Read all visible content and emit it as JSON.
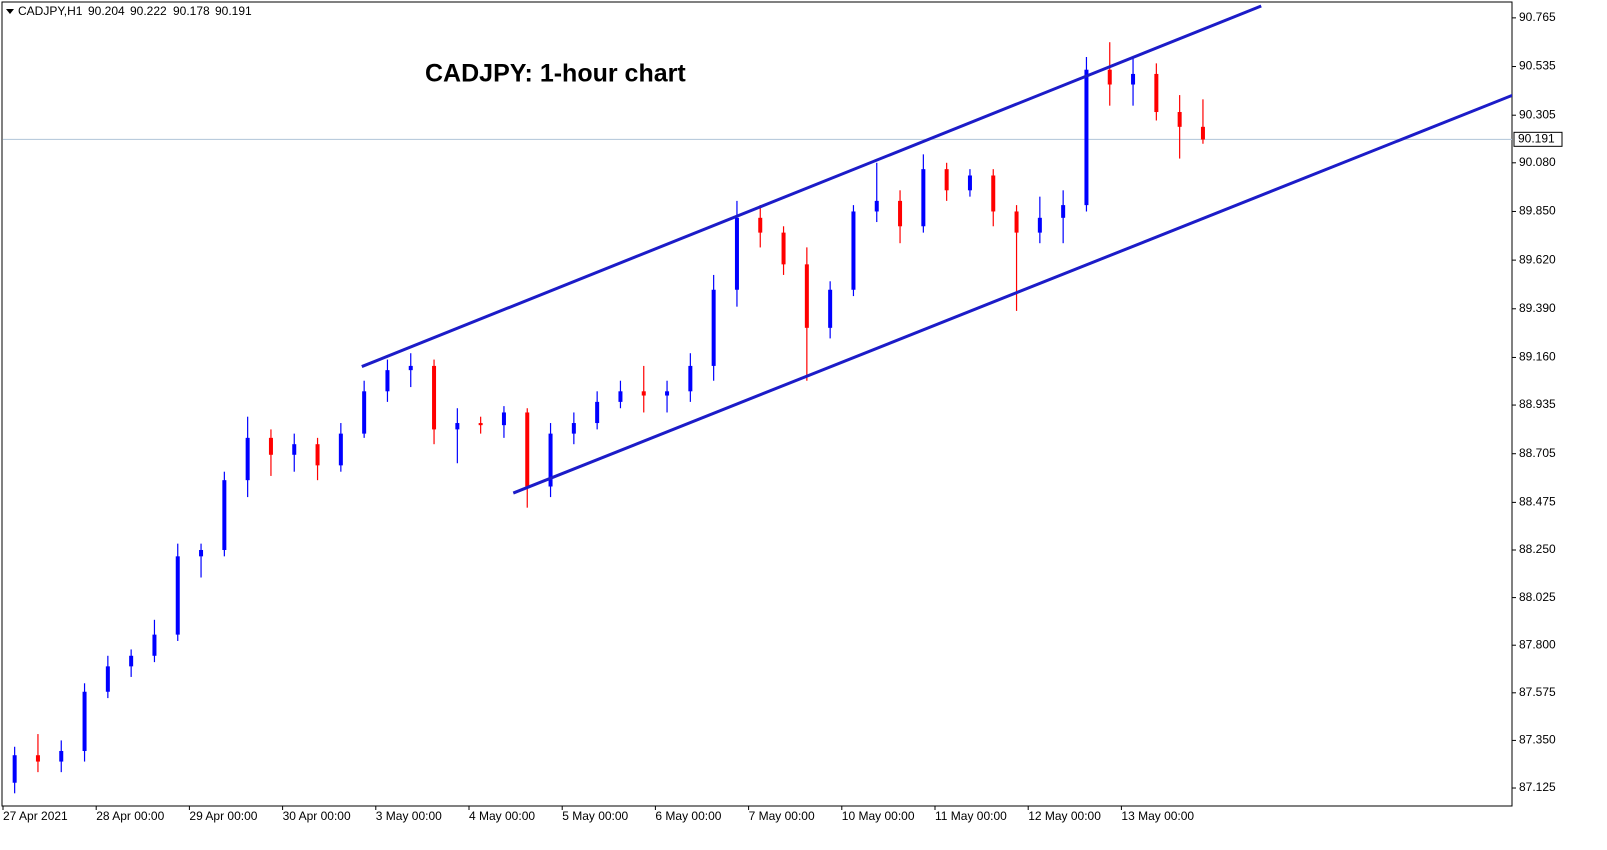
{
  "chart_data": {
    "type": "candlestick",
    "symbol": "CADJPY,H1",
    "header_prices": [
      90.204,
      90.222,
      90.178,
      90.191
    ],
    "title": "CADJPY: 1-hour chart",
    "categories": [
      "27 Apr 2021",
      null,
      null,
      null,
      "28 Apr 00:00",
      null,
      null,
      null,
      "29 Apr 00:00",
      null,
      null,
      null,
      "30 Apr 00:00",
      null,
      null,
      null,
      "3 May 00:00",
      null,
      null,
      null,
      "4 May 00:00",
      null,
      null,
      null,
      "5 May 00:00",
      null,
      null,
      null,
      "6 May 00:00",
      null,
      null,
      null,
      "7 May 00:00",
      null,
      null,
      null,
      "10 May 00:00",
      null,
      null,
      null,
      "11 May 00:00",
      null,
      null,
      null,
      "12 May 00:00",
      null,
      null,
      null,
      "13 May 00:00",
      null,
      null,
      null
    ],
    "open": [
      87.15,
      87.28,
      87.25,
      87.3,
      87.58,
      87.7,
      87.75,
      87.85,
      88.22,
      88.25,
      88.58,
      88.78,
      88.7,
      88.75,
      88.65,
      88.8,
      89.0,
      89.1,
      89.12,
      88.82,
      88.85,
      88.84,
      88.9,
      88.55,
      88.8,
      88.85,
      88.95,
      89.0,
      88.98,
      89.0,
      89.12,
      89.48,
      89.82,
      89.75,
      89.6,
      89.3,
      89.48,
      89.85,
      89.9,
      89.78,
      90.05,
      89.95,
      90.02,
      89.85,
      89.75,
      89.82,
      89.88,
      90.52,
      90.45,
      90.5,
      90.32,
      90.25
    ],
    "high": [
      87.32,
      87.38,
      87.35,
      87.62,
      87.75,
      87.78,
      87.92,
      88.28,
      88.28,
      88.62,
      88.88,
      88.82,
      88.8,
      88.78,
      88.85,
      89.05,
      89.15,
      89.18,
      89.15,
      88.92,
      88.88,
      88.93,
      88.92,
      88.85,
      88.9,
      89.0,
      89.05,
      89.12,
      89.05,
      89.18,
      89.55,
      89.9,
      89.88,
      89.78,
      89.68,
      89.52,
      89.88,
      90.08,
      89.95,
      90.12,
      90.08,
      90.05,
      90.05,
      89.88,
      89.92,
      89.95,
      90.58,
      90.65,
      90.58,
      90.55,
      90.4,
      90.38
    ],
    "low": [
      87.1,
      87.2,
      87.2,
      87.25,
      87.55,
      87.65,
      87.72,
      87.82,
      88.12,
      88.22,
      88.5,
      88.6,
      88.62,
      88.58,
      88.62,
      88.78,
      88.95,
      89.02,
      88.75,
      88.66,
      88.8,
      88.78,
      88.45,
      88.5,
      88.75,
      88.82,
      88.92,
      88.9,
      88.9,
      88.95,
      89.05,
      89.4,
      89.68,
      89.55,
      89.05,
      89.25,
      89.45,
      89.8,
      89.7,
      89.75,
      89.9,
      89.92,
      89.78,
      89.38,
      89.7,
      89.7,
      89.85,
      90.35,
      90.35,
      90.28,
      90.1,
      90.17
    ],
    "close": [
      87.28,
      87.25,
      87.3,
      87.58,
      87.7,
      87.75,
      87.85,
      88.22,
      88.25,
      88.58,
      88.78,
      88.7,
      88.75,
      88.65,
      88.8,
      89.0,
      89.1,
      89.12,
      88.82,
      88.85,
      88.84,
      88.9,
      88.55,
      88.8,
      88.85,
      88.95,
      89.0,
      88.98,
      89.0,
      89.12,
      89.48,
      89.82,
      89.75,
      89.6,
      89.3,
      89.48,
      89.85,
      89.9,
      89.78,
      90.05,
      89.95,
      90.02,
      89.85,
      89.75,
      89.82,
      89.88,
      90.52,
      90.45,
      90.5,
      90.32,
      90.25,
      90.19
    ],
    "up_color": "#0000ff",
    "down_color": "#ff0000",
    "last_price": 90.191,
    "last_price_color": "#b0c4d8",
    "trendlines": [
      {
        "x": [
          14.9,
          53.5
        ],
        "y": [
          89.117,
          90.821
        ],
        "color": "#1c1cc8"
      },
      {
        "x": [
          21.4,
          64.3
        ],
        "y": [
          88.519,
          90.4
        ],
        "color": "#1c1cc8"
      }
    ],
    "ylim": [
      87.04,
      90.84
    ],
    "yticks": [
      90.765,
      90.535,
      90.305,
      {
        "value": 90.08,
        "label": "90.080"
      },
      {
        "value": 89.85,
        "label": "89.850"
      },
      {
        "value": 89.62,
        "label": "89.620"
      },
      {
        "value": 89.39,
        "label": "89.390"
      },
      {
        "value": 89.16,
        "label": "89.160"
      },
      88.935,
      88.705,
      88.475,
      {
        "value": 88.25,
        "label": "88.250"
      },
      88.025,
      {
        "value": 87.8,
        "label": "87.800"
      },
      87.575,
      {
        "value": 87.35,
        "label": "87.350"
      },
      87.125
    ],
    "grid": false
  }
}
